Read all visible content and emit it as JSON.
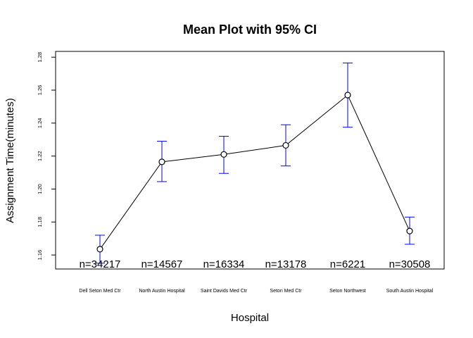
{
  "chart_data": {
    "type": "line",
    "title": "Mean Plot with 95% CI",
    "xlabel": "Hospital",
    "ylabel": "Assignment Time(minutes)",
    "categories": [
      "Dell Seton Med Ctr",
      "North Austin Hospital",
      "Saint Davids Med Ctr",
      "Seton Med Ctr",
      "Seton Northwest",
      "South Austin Hospital"
    ],
    "means": [
      1.1635,
      1.2165,
      1.221,
      1.2265,
      1.257,
      1.1745
    ],
    "ci_lower": [
      1.155,
      1.2045,
      1.2095,
      1.214,
      1.2375,
      1.1665
    ],
    "ci_upper": [
      1.172,
      1.229,
      1.232,
      1.239,
      1.2765,
      1.183
    ],
    "n_labels": [
      "n=34217",
      "n=14567",
      "n=16334",
      "n=13178",
      "n=6221",
      "n=30508"
    ],
    "yticks": [
      1.16,
      1.18,
      1.2,
      1.22,
      1.24,
      1.26,
      1.28
    ],
    "ytick_labels": [
      "1.16",
      "1.18",
      "1.20",
      "1.22",
      "1.24",
      "1.26",
      "1.28"
    ],
    "ylim": [
      1.1515,
      1.2835
    ],
    "grid": false,
    "line_color": "#000000",
    "ci_color": "#0000ff"
  }
}
